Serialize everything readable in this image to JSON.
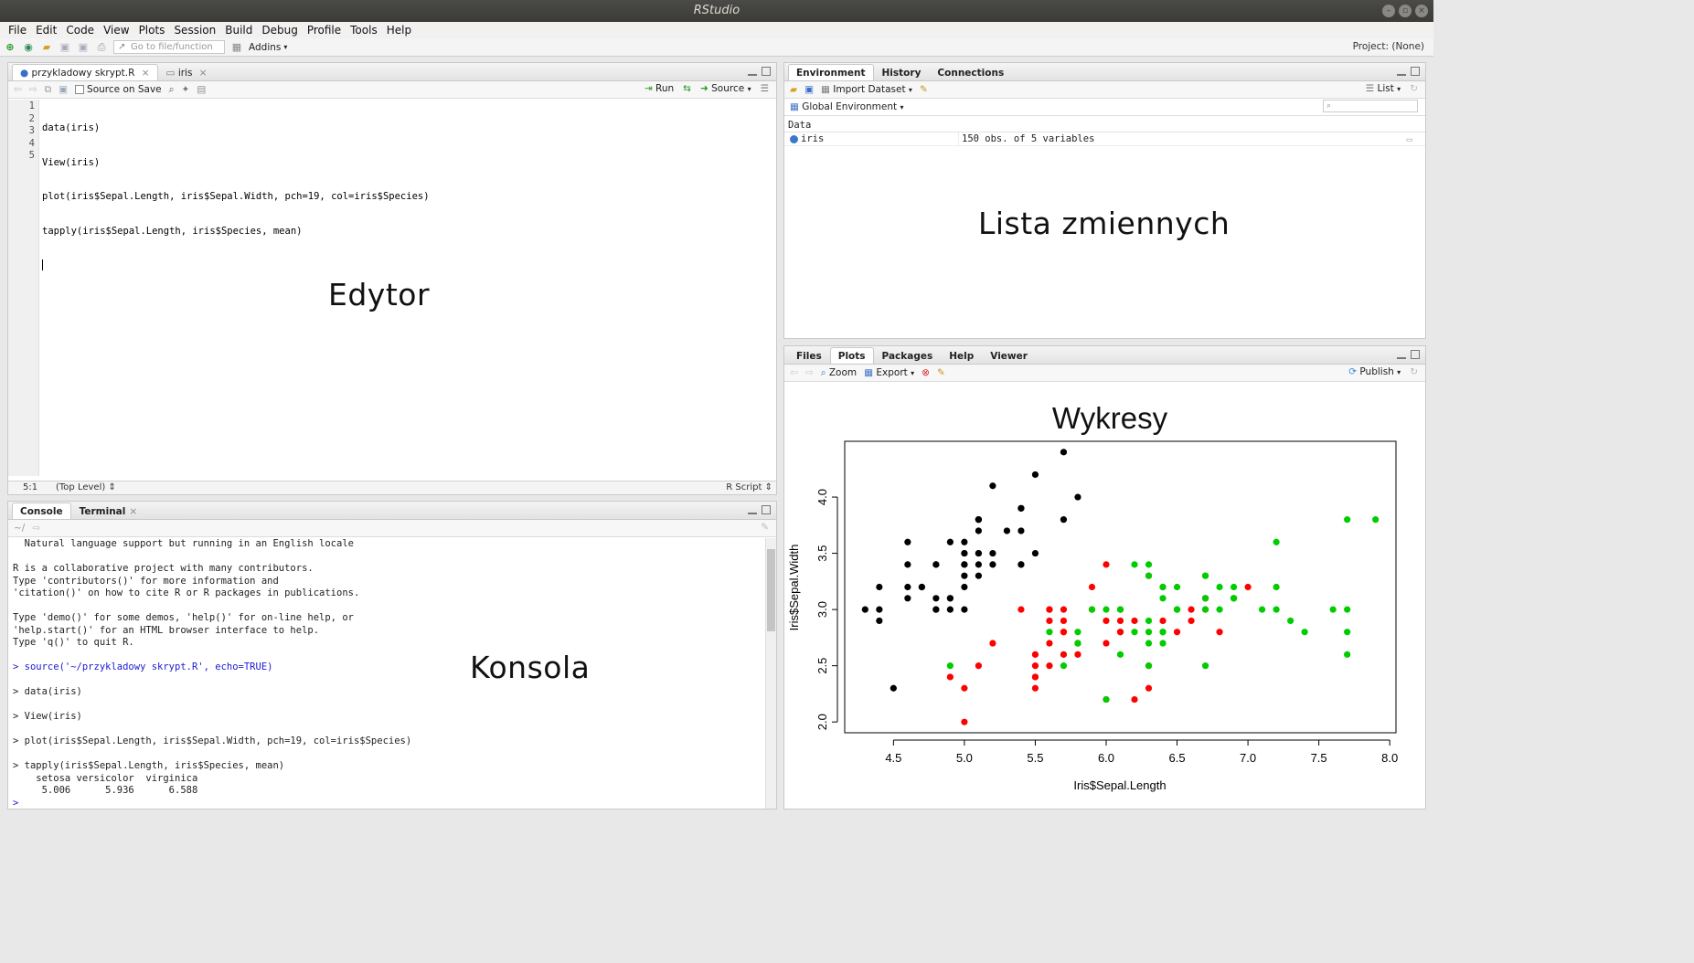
{
  "window": {
    "title": "RStudio"
  },
  "menu": [
    "File",
    "Edit",
    "Code",
    "View",
    "Plots",
    "Session",
    "Build",
    "Debug",
    "Profile",
    "Tools",
    "Help"
  ],
  "toolbar": {
    "goto_placeholder": "Go to file/function",
    "addins": "Addins",
    "project": "Project: (None)"
  },
  "editor": {
    "tabs": [
      {
        "label": "przykladowy skrypt.R"
      },
      {
        "label": "iris"
      }
    ],
    "source_on_save": "Source on Save",
    "run": "Run",
    "source": "Source",
    "lines": [
      "data(iris)",
      "View(iris)",
      "plot(iris$Sepal.Length, iris$Sepal.Width, pch=19, col=iris$Species)",
      "tapply(iris$Sepal.Length, iris$Species, mean)",
      ""
    ],
    "line_numbers": [
      "1",
      "2",
      "3",
      "4",
      "5"
    ],
    "status_pos": "5:1",
    "status_scope": "(Top Level)",
    "status_type": "R Script",
    "overlay": "Edytor"
  },
  "console": {
    "tabs": [
      "Console",
      "Terminal"
    ],
    "path": "~/",
    "lines": [
      {
        "t": "  Natural language support but running in an English locale",
        "c": ""
      },
      {
        "t": "",
        "c": ""
      },
      {
        "t": "R is a collaborative project with many contributors.",
        "c": ""
      },
      {
        "t": "Type 'contributors()' for more information and",
        "c": ""
      },
      {
        "t": "'citation()' on how to cite R or R packages in publications.",
        "c": ""
      },
      {
        "t": "",
        "c": ""
      },
      {
        "t": "Type 'demo()' for some demos, 'help()' for on-line help, or",
        "c": ""
      },
      {
        "t": "'help.start()' for an HTML browser interface to help.",
        "c": ""
      },
      {
        "t": "Type 'q()' to quit R.",
        "c": ""
      },
      {
        "t": "",
        "c": ""
      },
      {
        "t": "> source('~/przykladowy skrypt.R', echo=TRUE)",
        "c": "blue"
      },
      {
        "t": "",
        "c": ""
      },
      {
        "t": "> data(iris)",
        "c": ""
      },
      {
        "t": "",
        "c": ""
      },
      {
        "t": "> View(iris)",
        "c": ""
      },
      {
        "t": "",
        "c": ""
      },
      {
        "t": "> plot(iris$Sepal.Length, iris$Sepal.Width, pch=19, col=iris$Species)",
        "c": ""
      },
      {
        "t": "",
        "c": ""
      },
      {
        "t": "> tapply(iris$Sepal.Length, iris$Species, mean)",
        "c": ""
      },
      {
        "t": "    setosa versicolor  virginica ",
        "c": ""
      },
      {
        "t": "     5.006      5.936      6.588 ",
        "c": ""
      },
      {
        "t": "> ",
        "c": "blue"
      }
    ],
    "overlay": "Konsola"
  },
  "environment": {
    "tabs": [
      "Environment",
      "History",
      "Connections"
    ],
    "import_dataset": "Import Dataset",
    "list": "List",
    "global_env": "Global Environment",
    "section": "Data",
    "rows": [
      {
        "name": "iris",
        "value": "150 obs. of 5 variables"
      }
    ],
    "overlay": "Lista zmiennych"
  },
  "plots": {
    "tabs": [
      "Files",
      "Plots",
      "Packages",
      "Help",
      "Viewer"
    ],
    "zoom": "Zoom",
    "export": "Export",
    "publish": "Publish",
    "overlay": "Wykresy"
  },
  "chart_data": {
    "type": "scatter",
    "title": "",
    "xlabel": "Iris$Sepal.Length",
    "ylabel": "Iris$Sepal.Width",
    "xlim": [
      4.3,
      7.9
    ],
    "ylim": [
      2.0,
      4.4
    ],
    "x_ticks": [
      "4.5",
      "5.0",
      "5.5",
      "6.0",
      "6.5",
      "7.0",
      "7.5",
      "8.0"
    ],
    "y_ticks": [
      "2.0",
      "2.5",
      "3.0",
      "3.5",
      "4.0"
    ],
    "series": [
      {
        "color": "#000000",
        "points": [
          [
            5.1,
            3.5
          ],
          [
            4.9,
            3.0
          ],
          [
            4.7,
            3.2
          ],
          [
            4.6,
            3.1
          ],
          [
            5.0,
            3.6
          ],
          [
            5.4,
            3.9
          ],
          [
            4.6,
            3.4
          ],
          [
            5.0,
            3.4
          ],
          [
            4.4,
            2.9
          ],
          [
            4.9,
            3.1
          ],
          [
            5.4,
            3.7
          ],
          [
            4.8,
            3.4
          ],
          [
            4.8,
            3.0
          ],
          [
            4.3,
            3.0
          ],
          [
            5.8,
            4.0
          ],
          [
            5.7,
            4.4
          ],
          [
            5.4,
            3.9
          ],
          [
            5.1,
            3.5
          ],
          [
            5.7,
            3.8
          ],
          [
            5.1,
            3.8
          ],
          [
            5.4,
            3.4
          ],
          [
            5.1,
            3.7
          ],
          [
            4.6,
            3.6
          ],
          [
            5.1,
            3.3
          ],
          [
            4.8,
            3.4
          ],
          [
            5.0,
            3.0
          ],
          [
            5.0,
            3.4
          ],
          [
            5.2,
            3.5
          ],
          [
            5.2,
            3.4
          ],
          [
            4.7,
            3.2
          ],
          [
            4.8,
            3.1
          ],
          [
            5.4,
            3.4
          ],
          [
            5.2,
            4.1
          ],
          [
            5.5,
            4.2
          ],
          [
            4.9,
            3.1
          ],
          [
            5.0,
            3.2
          ],
          [
            5.5,
            3.5
          ],
          [
            4.9,
            3.6
          ],
          [
            4.4,
            3.0
          ],
          [
            5.1,
            3.4
          ],
          [
            5.0,
            3.5
          ],
          [
            4.5,
            2.3
          ],
          [
            4.4,
            3.2
          ],
          [
            5.0,
            3.5
          ],
          [
            5.1,
            3.8
          ],
          [
            4.8,
            3.0
          ],
          [
            5.1,
            3.8
          ],
          [
            4.6,
            3.2
          ],
          [
            5.3,
            3.7
          ],
          [
            5.0,
            3.3
          ]
        ]
      },
      {
        "color": "#ff0000",
        "points": [
          [
            7.0,
            3.2
          ],
          [
            6.4,
            3.2
          ],
          [
            6.9,
            3.1
          ],
          [
            5.5,
            2.3
          ],
          [
            6.5,
            2.8
          ],
          [
            5.7,
            2.8
          ],
          [
            6.3,
            3.3
          ],
          [
            4.9,
            2.4
          ],
          [
            6.6,
            2.9
          ],
          [
            5.2,
            2.7
          ],
          [
            5.0,
            2.0
          ],
          [
            5.9,
            3.0
          ],
          [
            6.0,
            2.2
          ],
          [
            6.1,
            2.9
          ],
          [
            5.6,
            2.9
          ],
          [
            6.7,
            3.1
          ],
          [
            5.6,
            3.0
          ],
          [
            5.8,
            2.7
          ],
          [
            6.2,
            2.2
          ],
          [
            5.6,
            2.5
          ],
          [
            5.9,
            3.2
          ],
          [
            6.1,
            2.8
          ],
          [
            6.3,
            2.5
          ],
          [
            6.1,
            2.8
          ],
          [
            6.4,
            2.9
          ],
          [
            6.6,
            3.0
          ],
          [
            6.8,
            2.8
          ],
          [
            6.7,
            3.0
          ],
          [
            6.0,
            2.9
          ],
          [
            5.7,
            2.6
          ],
          [
            5.5,
            2.4
          ],
          [
            5.5,
            2.4
          ],
          [
            5.8,
            2.7
          ],
          [
            6.0,
            2.7
          ],
          [
            5.4,
            3.0
          ],
          [
            6.0,
            3.4
          ],
          [
            6.7,
            3.1
          ],
          [
            6.3,
            2.3
          ],
          [
            5.6,
            3.0
          ],
          [
            5.5,
            2.5
          ],
          [
            5.5,
            2.6
          ],
          [
            6.1,
            3.0
          ],
          [
            5.8,
            2.6
          ],
          [
            5.0,
            2.3
          ],
          [
            5.6,
            2.7
          ],
          [
            5.7,
            3.0
          ],
          [
            5.7,
            2.9
          ],
          [
            6.2,
            2.9
          ],
          [
            5.1,
            2.5
          ],
          [
            5.7,
            2.8
          ]
        ]
      },
      {
        "color": "#00cd00",
        "points": [
          [
            6.3,
            3.3
          ],
          [
            5.8,
            2.7
          ],
          [
            7.1,
            3.0
          ],
          [
            6.3,
            2.9
          ],
          [
            6.5,
            3.0
          ],
          [
            7.6,
            3.0
          ],
          [
            4.9,
            2.5
          ],
          [
            7.3,
            2.9
          ],
          [
            6.7,
            2.5
          ],
          [
            7.2,
            3.6
          ],
          [
            6.5,
            3.2
          ],
          [
            6.4,
            2.7
          ],
          [
            6.8,
            3.0
          ],
          [
            5.7,
            2.5
          ],
          [
            5.8,
            2.8
          ],
          [
            6.4,
            3.2
          ],
          [
            6.5,
            3.0
          ],
          [
            7.7,
            3.8
          ],
          [
            7.7,
            2.6
          ],
          [
            6.0,
            2.2
          ],
          [
            6.9,
            3.2
          ],
          [
            5.6,
            2.8
          ],
          [
            7.7,
            2.8
          ],
          [
            6.3,
            2.7
          ],
          [
            6.7,
            3.3
          ],
          [
            7.2,
            3.2
          ],
          [
            6.2,
            2.8
          ],
          [
            6.1,
            3.0
          ],
          [
            6.4,
            2.8
          ],
          [
            7.2,
            3.0
          ],
          [
            7.4,
            2.8
          ],
          [
            7.9,
            3.8
          ],
          [
            6.4,
            2.8
          ],
          [
            6.3,
            2.8
          ],
          [
            6.1,
            2.6
          ],
          [
            7.7,
            3.0
          ],
          [
            6.3,
            3.4
          ],
          [
            6.4,
            3.1
          ],
          [
            6.0,
            3.0
          ],
          [
            6.9,
            3.1
          ],
          [
            6.7,
            3.1
          ],
          [
            6.9,
            3.1
          ],
          [
            5.8,
            2.7
          ],
          [
            6.8,
            3.2
          ],
          [
            6.7,
            3.3
          ],
          [
            6.7,
            3.0
          ],
          [
            6.3,
            2.5
          ],
          [
            6.5,
            3.0
          ],
          [
            6.2,
            3.4
          ],
          [
            5.9,
            3.0
          ]
        ]
      }
    ]
  }
}
